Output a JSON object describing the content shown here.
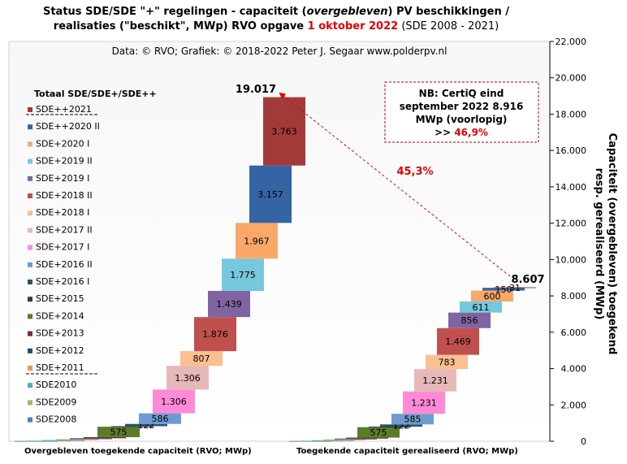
{
  "title": {
    "p1": "Status SDE/SDE \"+\" regelingen - capaciteit (",
    "p1_em": "overgebleven",
    "p2": ") PV beschikkingen /",
    "p3": "realisaties (\"beschikt\", MWp) RVO opgave ",
    "p3_red": "1 oktober 2022",
    "p3_plain": " (SDE 2008 - 2021)"
  },
  "source": "Data: © RVO; Grafiek: © 2018-2022 Peter J. Segaar www.polderpv.nl",
  "legend_title": "Totaal SDE/SDE+/SDE++",
  "right_axis_label": [
    "Capaciteit (overgebleven) toegekend",
    "resp. gerealiseerd (MWp)"
  ],
  "note": {
    "line1": "NB: CertiQ eind",
    "line2": "september 2022 8.916",
    "line3": "MWp (voorlopig)",
    "line4_prefix": ">> ",
    "line4_value": "46,9%"
  },
  "arrow_label": "45,3%",
  "chart_data": {
    "type": "bar",
    "subtype": "stacked-waterfall",
    "ylim": [
      0,
      22000
    ],
    "yticks": [
      "0",
      "2.000",
      "4.000",
      "6.000",
      "8.000",
      "10.000",
      "12.000",
      "14.000",
      "16.000",
      "18.000",
      "20.000",
      "22.000"
    ],
    "ytick_values": [
      0,
      2000,
      4000,
      6000,
      8000,
      10000,
      12000,
      14000,
      16000,
      18000,
      20000,
      22000
    ],
    "categories": [
      "Overgebleven toegekende capaciteit (RVO; MWp)",
      "Toegekende capaciteit gerealiseerd (RVO; MWp)"
    ],
    "totals": [
      "19.017",
      "8.607"
    ],
    "series": [
      {
        "name": "SDE2008",
        "color": "#4f81bd",
        "values": [
          18,
          16
        ]
      },
      {
        "name": "SDE2009",
        "color": "#9bbb59",
        "values": [
          22,
          18
        ]
      },
      {
        "name": "SDE2010",
        "color": "#4bacc6",
        "values": [
          25,
          22
        ]
      },
      {
        "name": "SDE+2011",
        "color": "#f79646",
        "values": [
          50,
          45
        ]
      },
      {
        "name": "SDE+2012",
        "color": "#1f4e79",
        "values": [
          50,
          45
        ]
      },
      {
        "name": "SDE+2013",
        "color": "#7b2c2c",
        "values": [
          60,
          55
        ]
      },
      {
        "name": "SDE+2014",
        "color": "#5a7d2a",
        "values": [
          575,
          575
        ]
      },
      {
        "name": "SDE+2015",
        "color": "#403152",
        "values": [
          30,
          28
        ]
      },
      {
        "name": "SDE+2016 I",
        "color": "#215868",
        "values": [
          122,
          122
        ]
      },
      {
        "name": "SDE+2016 II",
        "color": "#6f9bd1",
        "values": [
          586,
          585
        ]
      },
      {
        "name": "SDE+2017 I",
        "color": "#ff8ad8",
        "values": [
          1306,
          1231
        ]
      },
      {
        "name": "SDE+2017 II",
        "color": "#e6b8b7",
        "values": [
          1306,
          1231
        ]
      },
      {
        "name": "SDE+2018 I",
        "color": "#fac090",
        "values": [
          807,
          783
        ]
      },
      {
        "name": "SDE+2018 II",
        "color": "#c0504d",
        "values": [
          1876,
          1469
        ]
      },
      {
        "name": "SDE+2019 I",
        "color": "#8064a2",
        "values": [
          1439,
          856
        ]
      },
      {
        "name": "SDE+2019 II",
        "color": "#76c8dc",
        "values": [
          1775,
          611
        ]
      },
      {
        "name": "SDE+2020 I",
        "color": "#f9a86a",
        "values": [
          1967,
          600
        ]
      },
      {
        "name": "SDE++2020 II",
        "color": "#3464a4",
        "values": [
          3157,
          150
        ]
      },
      {
        "name": "SDE++2021",
        "color": "#a33a3a",
        "values": [
          3763,
          31
        ]
      }
    ],
    "data_labels": [
      {
        "series": "SDE+2014",
        "labels": [
          "575",
          "575"
        ]
      },
      {
        "series": "SDE+2016 I",
        "labels": [
          "122",
          "122"
        ]
      },
      {
        "series": "SDE+2016 II",
        "labels": [
          "586",
          "585"
        ]
      },
      {
        "series": "SDE+2017 I",
        "labels": [
          "1.306",
          "1.231"
        ]
      },
      {
        "series": "SDE+2017 II",
        "labels": [
          "1.306",
          "1.231"
        ]
      },
      {
        "series": "SDE+2018 I",
        "labels": [
          "807",
          "783"
        ]
      },
      {
        "series": "SDE+2018 II",
        "labels": [
          "1.876",
          "1.469"
        ]
      },
      {
        "series": "SDE+2019 I",
        "labels": [
          "1.439",
          "856"
        ]
      },
      {
        "series": "SDE+2019 II",
        "labels": [
          "1.775",
          "611"
        ]
      },
      {
        "series": "SDE+2020 I",
        "labels": [
          "1.967",
          "600"
        ]
      },
      {
        "series": "SDE++2020 II",
        "labels": [
          "3.157",
          "150"
        ]
      },
      {
        "series": "SDE++2021",
        "labels": [
          "3.763",
          "31"
        ]
      }
    ],
    "legend_order": [
      "SDE++2021",
      "SDE++2020 II",
      "SDE+2020 I",
      "SDE+2019 II",
      "SDE+2019 I",
      "SDE+2018 II",
      "SDE+2018 I",
      "SDE+2017 II",
      "SDE+2017 I",
      "SDE+2016 II",
      "SDE+2016 I",
      "SDE+2015",
      "SDE+2014",
      "SDE+2013",
      "SDE+2012",
      "SDE+2011",
      "SDE2010",
      "SDE2009",
      "SDE2008"
    ],
    "legend_position": "left",
    "grid": false
  }
}
